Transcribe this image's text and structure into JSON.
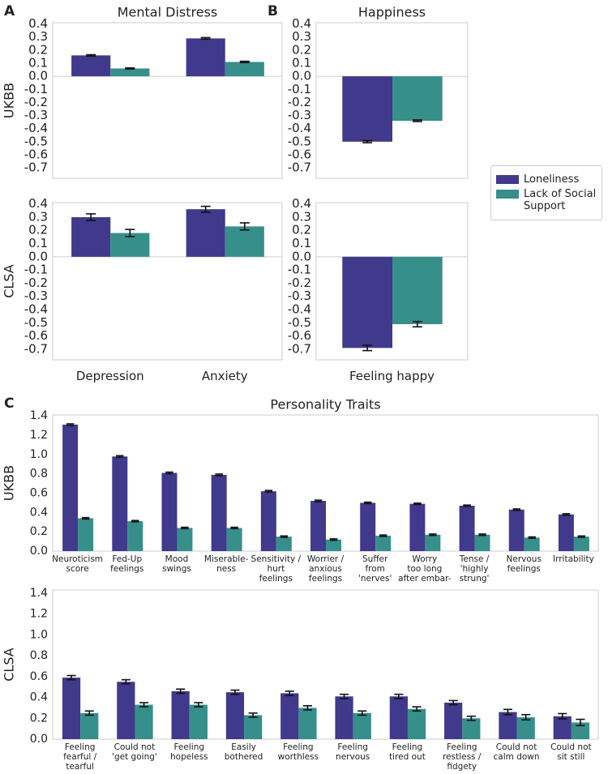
{
  "chart_data": [
    {
      "type": "bar",
      "panel": "A",
      "title": "Mental Distress",
      "ylabel": "UKBB",
      "ylim": [
        -0.78,
        0.41
      ],
      "yticks": [
        0.4,
        0.3,
        0.2,
        0.1,
        {
          "value": 0,
          "label": "0.0"
        },
        -0.1,
        -0.2,
        -0.3,
        -0.4,
        -0.5,
        -0.6,
        -0.7
      ],
      "legend": "right",
      "series": [
        {
          "name": "Loneliness",
          "color": "#41398b",
          "values": [
            0.16,
            0.29
          ],
          "errors": [
            0.005,
            0.006
          ]
        },
        {
          "name": "Lack of Social Support",
          "color": "#368f8b",
          "values": [
            0.06,
            0.11
          ],
          "errors": [
            0.004,
            0.005
          ]
        }
      ]
    },
    {
      "type": "bar",
      "panel": "B",
      "title": "Happiness",
      "ylim": [
        -0.78,
        0.41
      ],
      "yticks": [
        0.4,
        0.3,
        0.2,
        0.1,
        {
          "value": 0,
          "label": "0.0"
        },
        -0.1,
        -0.2,
        -0.3,
        -0.4,
        -0.5,
        -0.6,
        -0.7
      ],
      "series": [
        {
          "color": "#41398b",
          "values": [
            -0.5
          ],
          "errors": [
            0.008
          ]
        },
        {
          "color": "#368f8b",
          "values": [
            -0.34
          ],
          "errors": [
            0.006
          ]
        }
      ]
    },
    {
      "type": "bar",
      "ylabel": "CLSA",
      "ylim": [
        -0.78,
        0.41
      ],
      "categories": [
        "Depression",
        "Anxiety"
      ],
      "yticks": [
        0.4,
        0.3,
        0.2,
        0.1,
        {
          "value": 0,
          "label": "0.0"
        },
        -0.1,
        -0.2,
        -0.3,
        -0.4,
        -0.5,
        -0.6,
        -0.7
      ],
      "series": [
        {
          "color": "#41398b",
          "values": [
            0.3,
            0.36
          ],
          "errors": [
            0.025,
            0.022
          ]
        },
        {
          "color": "#368f8b",
          "values": [
            0.18,
            0.23
          ],
          "errors": [
            0.027,
            0.027
          ]
        }
      ]
    },
    {
      "type": "bar",
      "ylim": [
        -0.78,
        0.41
      ],
      "categories": [
        "Feeling happy"
      ],
      "yticks": [
        0.4,
        0.3,
        0.2,
        0.1,
        {
          "value": 0,
          "label": "0.0"
        },
        -0.1,
        -0.2,
        -0.3,
        -0.4,
        -0.5,
        -0.6,
        -0.7
      ],
      "series": [
        {
          "color": "#41398b",
          "values": [
            -0.69
          ],
          "errors": [
            0.02
          ]
        },
        {
          "color": "#368f8b",
          "values": [
            -0.51
          ],
          "errors": [
            0.02
          ]
        }
      ]
    },
    {
      "type": "bar",
      "panel": "C",
      "title": "Personality Traits",
      "ylabel": "UKBB",
      "ylim": [
        0,
        1.41
      ],
      "yticks": [
        {
          "value": 0,
          "label": "0.0"
        },
        0.2,
        0.4,
        0.6,
        0.8,
        {
          "value": 1,
          "label": "1.0"
        },
        1.2,
        1.4
      ],
      "categories": [
        "Neuroticism\nscore",
        "Fed-Up\nfeelings",
        "Mood\nswings",
        "Miserable-\nness",
        "Sensitivity /\nhurt\nfeelings",
        "Worrier /\nanxious\nfeelings",
        "Suffer\nfrom\n'nerves'",
        "Worry\ntoo long\nafter embar-",
        "Tense /\n'highly\nstrung'",
        "Nervous\nfeelings",
        "Irritability"
      ],
      "series": [
        {
          "color": "#41398b",
          "values": [
            1.31,
            0.98,
            0.81,
            0.79,
            0.62,
            0.52,
            0.5,
            0.49,
            0.47,
            0.43,
            0.38
          ],
          "errors": [
            0.008,
            0.008,
            0.008,
            0.008,
            0.008,
            0.008,
            0.007,
            0.007,
            0.007,
            0.007,
            0.007
          ]
        },
        {
          "color": "#368f8b",
          "values": [
            0.34,
            0.31,
            0.24,
            0.24,
            0.15,
            0.12,
            0.16,
            0.17,
            0.17,
            0.14,
            0.15
          ],
          "errors": [
            0.007,
            0.007,
            0.007,
            0.007,
            0.007,
            0.007,
            0.007,
            0.007,
            0.007,
            0.007,
            0.007
          ]
        }
      ]
    },
    {
      "type": "bar",
      "ylabel": "CLSA",
      "ylim": [
        0,
        1.43
      ],
      "yticks": [
        {
          "value": 0,
          "label": "0.0"
        },
        0.2,
        0.4,
        0.6,
        0.8,
        {
          "value": 1,
          "label": "1.0"
        },
        1.2,
        1.4
      ],
      "categories": [
        "Feeling\nfearful /\ntearful",
        "Could not\n'get going'",
        "Feeling\nhopeless",
        "Easily\nbothered",
        "Feeling\nworthless",
        "Feeling\nnervous",
        "Feeling\ntired out",
        "Feeling\nrestless /\nfidgety",
        "Could not\ncalm down",
        "Could not\nsit still"
      ],
      "series": [
        {
          "color": "#41398b",
          "values": [
            0.59,
            0.55,
            0.46,
            0.45,
            0.44,
            0.41,
            0.41,
            0.35,
            0.26,
            0.22
          ],
          "errors": [
            0.02,
            0.02,
            0.02,
            0.02,
            0.02,
            0.02,
            0.02,
            0.02,
            0.025,
            0.025
          ]
        },
        {
          "color": "#368f8b",
          "values": [
            0.25,
            0.33,
            0.33,
            0.23,
            0.3,
            0.25,
            0.29,
            0.2,
            0.21,
            0.16
          ],
          "errors": [
            0.02,
            0.02,
            0.02,
            0.02,
            0.02,
            0.02,
            0.02,
            0.02,
            0.025,
            0.03
          ]
        }
      ]
    }
  ]
}
